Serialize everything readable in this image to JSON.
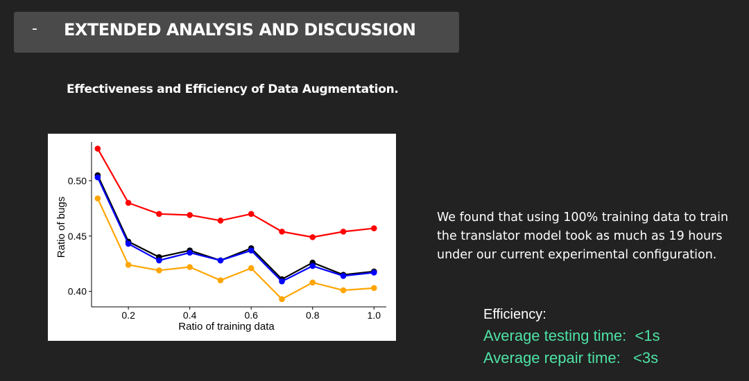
{
  "header": {
    "dash": "-",
    "title": "EXTENDED ANALYSIS AND DISCUSSION"
  },
  "subtitle": "Effectiveness and Efficiency of Data Augmentation.",
  "finding": "We found that using 100% training data to train the translator model took as much as 19 hours under our current experimental configuration.",
  "efficiency": {
    "heading": "Efficiency:",
    "testing": "Average testing time:  <1s",
    "repair": "Average repair time:   <3s"
  },
  "colors": {
    "background": "#222222",
    "header_bar": "#4a4a4a",
    "highlight_green": "#4de3a6"
  },
  "chart_data": {
    "type": "line",
    "xlabel": "Ratio of training data",
    "ylabel": "Ratio of bugs",
    "xlim": [
      0.08,
      1.04
    ],
    "ylim": [
      0.386,
      0.535
    ],
    "xticks": [
      0.2,
      0.4,
      0.6,
      0.8,
      1.0
    ],
    "xtick_labels": [
      "0.2",
      "0.4",
      "0.6",
      "0.8",
      "1.0"
    ],
    "yticks": [
      0.4,
      0.45,
      0.5
    ],
    "ytick_labels": [
      "0.40",
      "0.45",
      "0.50"
    ],
    "grid": false,
    "legend": "none",
    "x": [
      0.1,
      0.2,
      0.3,
      0.4,
      0.5,
      0.6,
      0.7,
      0.8,
      0.9,
      1.0
    ],
    "series": [
      {
        "color": "#ff0000",
        "values": [
          0.529,
          0.48,
          0.47,
          0.469,
          0.464,
          0.47,
          0.454,
          0.449,
          0.454,
          0.457
        ]
      },
      {
        "color": "#000000",
        "values": [
          0.505,
          0.445,
          0.431,
          0.437,
          0.428,
          0.439,
          0.411,
          0.426,
          0.415,
          0.418
        ]
      },
      {
        "color": "#0000ff",
        "values": [
          0.503,
          0.443,
          0.428,
          0.435,
          0.428,
          0.437,
          0.409,
          0.423,
          0.414,
          0.417
        ]
      },
      {
        "color": "#ffa500",
        "values": [
          0.484,
          0.424,
          0.419,
          0.422,
          0.41,
          0.421,
          0.393,
          0.408,
          0.401,
          0.403
        ]
      }
    ]
  }
}
